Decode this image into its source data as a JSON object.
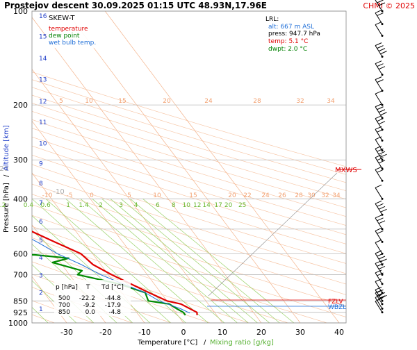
{
  "header": {
    "title": "Prostejov   descent   30.09.2025 01:15 UTC   48.93N,17.96E",
    "copyright": "CHMI © 2025"
  },
  "legend": {
    "title": "SKEW-T",
    "items": [
      {
        "label": "temperature",
        "color": "#ff0000"
      },
      {
        "label": "dew point",
        "color": "#008000"
      },
      {
        "label": "wet bulb temp.",
        "color": "#1e6ed8"
      }
    ]
  },
  "lrl": {
    "title": "LRL:",
    "alt": "alt: 667 m ASL",
    "press": "press: 947.7 hPa",
    "temp": "temp: 5.1 °C",
    "dwpt": "dwpt: 2.0 °C"
  },
  "axes": {
    "xlabel_temp": "Temperature [°C]",
    "xlabel_sep": "/",
    "xlabel_mix": "Mixing ratio [g/kg]",
    "ylabel_press": "Pressure [hPa]",
    "ylabel_sep": "/",
    "ylabel_alt": "Altitude [km]"
  },
  "levels": {
    "mxws": "MXWS",
    "fzlv": "FZLV",
    "wbzl": "WBZL"
  },
  "table": {
    "header": [
      "p [hPa]",
      "T",
      "Td [°C]"
    ],
    "rows": [
      [
        "500",
        "-22.2",
        "-44.8"
      ],
      [
        "700",
        "-9.2",
        "-17.9"
      ],
      [
        "850",
        "0.0",
        "-4.8"
      ]
    ]
  },
  "colors": {
    "temperature": "#e00000",
    "dewpoint": "#008a00",
    "wetbulb": "#1e6ed8",
    "isotherm": "#f4b48c",
    "dry_adiabat": "#f7c6a6",
    "mixing_ratio": "#9bd26a",
    "grid": "#bbbbbb"
  },
  "chart_data": {
    "type": "line",
    "title": "Prostejov   descent   30.09.2025 01:15 UTC   48.93N,17.96E",
    "xlabel": "Temperature [°C]",
    "ylabel": "Pressure [hPa]",
    "xlim": [
      -35,
      45
    ],
    "ylim": [
      1000,
      100
    ],
    "yscale": "log",
    "x_ticks": [
      -30,
      -20,
      -10,
      0,
      10,
      20,
      30,
      40
    ],
    "pressure_ticks": [
      100,
      200,
      300,
      400,
      500,
      600,
      700,
      850,
      925,
      1000
    ],
    "altitude_ticks_km": [
      1,
      2,
      3,
      4,
      5,
      6,
      7,
      8,
      9,
      10,
      11,
      12,
      13,
      14,
      15,
      16
    ],
    "isotherm_labels": [
      -80,
      -70,
      -60,
      -50,
      -40,
      -30,
      -20,
      -10
    ],
    "mixing_ratio_labels": [
      "0.2",
      "0.4",
      "0.6",
      "1",
      "1.4",
      "2",
      "3",
      "4",
      "6",
      "8",
      "10",
      "12",
      "14",
      "17",
      "20",
      "25"
    ],
    "theta_labels_upper": [
      "5",
      "10",
      "15",
      "20",
      "24",
      "28",
      "32",
      "34"
    ],
    "theta_labels_lower": [
      "-10",
      "-5",
      "0",
      "5",
      "10",
      "15",
      "20",
      "22",
      "24",
      "26",
      "28",
      "30",
      "32",
      "34"
    ],
    "series": [
      {
        "name": "temperature",
        "points": [
          [
            944,
            5.0
          ],
          [
            925,
            5.5
          ],
          [
            900,
            4.4
          ],
          [
            870,
            3.0
          ],
          [
            850,
            0.0
          ],
          [
            800,
            -3.0
          ],
          [
            750,
            -6.0
          ],
          [
            700,
            -9.2
          ],
          [
            650,
            -12.0
          ],
          [
            600,
            -13.0
          ],
          [
            550,
            -17.5
          ],
          [
            500,
            -22.2
          ],
          [
            450,
            -27.0
          ],
          [
            400,
            -32.0
          ],
          [
            350,
            -36.5
          ],
          [
            300,
            -43.0
          ],
          [
            270,
            -47.0
          ],
          [
            250,
            -50.0
          ],
          [
            220,
            -52.0
          ],
          [
            200,
            -52.5
          ],
          [
            180,
            -55.0
          ],
          [
            160,
            -55.0
          ],
          [
            150,
            -57.0
          ],
          [
            140,
            -59.0
          ],
          [
            130,
            -60.0
          ],
          [
            120,
            -64.0
          ],
          [
            115,
            -65.0
          ],
          [
            110,
            -68.0
          ],
          [
            105,
            -70.0
          ],
          [
            100,
            -71.0
          ]
        ]
      },
      {
        "name": "dew point",
        "points": [
          [
            944,
            2.0
          ],
          [
            925,
            2.0
          ],
          [
            900,
            1.0
          ],
          [
            870,
            0.0
          ],
          [
            850,
            -4.8
          ],
          [
            800,
            -4.0
          ],
          [
            750,
            -9.0
          ],
          [
            700,
            -17.9
          ],
          [
            680,
            -16.0
          ],
          [
            640,
            -22.0
          ],
          [
            620,
            -17.0
          ],
          [
            605,
            -25.0
          ],
          [
            600,
            -34.0
          ],
          [
            580,
            -53.0
          ],
          [
            560,
            -48.0
          ],
          [
            530,
            -47.0
          ],
          [
            500,
            -44.8
          ],
          [
            480,
            -46.0
          ],
          [
            450,
            -42.0
          ],
          [
            420,
            -43.0
          ],
          [
            390,
            -43.0
          ],
          [
            370,
            -40.0
          ],
          [
            355,
            -45.0
          ],
          [
            340,
            -40.0
          ],
          [
            320,
            -44.0
          ],
          [
            300,
            -46.0
          ],
          [
            280,
            -48.0
          ],
          [
            260,
            -51.0
          ],
          [
            240,
            -53.0
          ],
          [
            220,
            -58.0
          ],
          [
            200,
            -62.0
          ],
          [
            180,
            -65.0
          ],
          [
            160,
            -73.0
          ],
          [
            140,
            -80.0
          ],
          [
            130,
            -83.0
          ],
          [
            120,
            -87.0
          ],
          [
            110,
            -90.0
          ],
          [
            100,
            -93.0
          ]
        ]
      },
      {
        "name": "wet bulb temp.",
        "points": [
          [
            930,
            3.5
          ],
          [
            900,
            2.0
          ],
          [
            850,
            -2.0
          ],
          [
            800,
            -4.0
          ],
          [
            750,
            -8.0
          ],
          [
            700,
            -12.0
          ],
          [
            650,
            -15.0
          ],
          [
            600,
            -19.0
          ],
          [
            550,
            -22.0
          ],
          [
            500,
            -26.0
          ],
          [
            450,
            -30.0
          ],
          [
            400,
            -35.0
          ],
          [
            350,
            -39.0
          ],
          [
            310,
            -44.0
          ]
        ]
      }
    ]
  }
}
